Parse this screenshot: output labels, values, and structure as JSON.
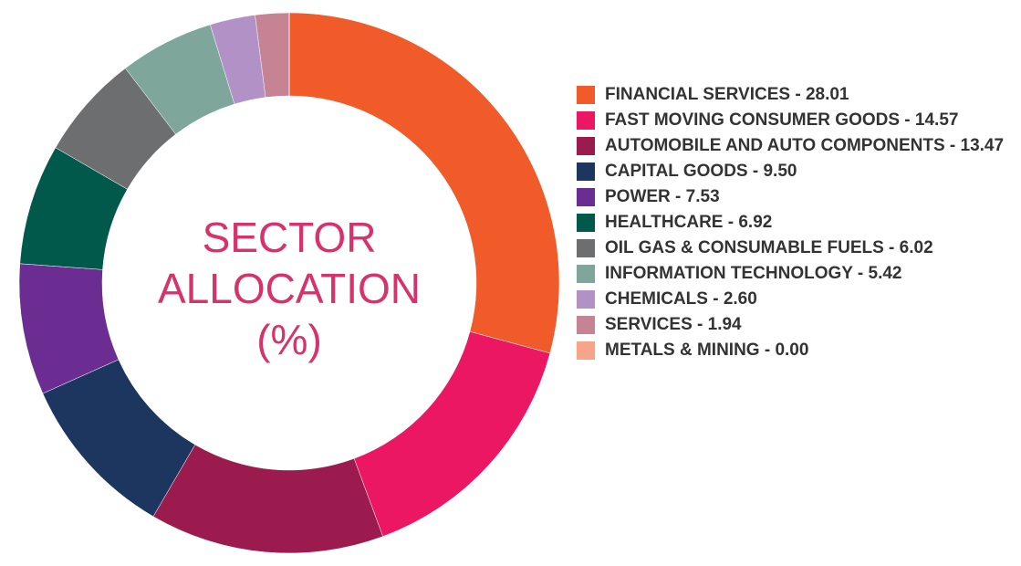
{
  "chart_data": {
    "type": "donut",
    "center_text": "SECTOR ALLOCATION (%)",
    "categories": [
      "FINANCIAL SERVICES - 28.01",
      "FAST MOVING CONSUMER GOODS - 14.57",
      "AUTOMOBILE AND AUTO COMPONENTS - 13.47",
      "CAPITAL GOODS - 9.50",
      "POWER - 7.53",
      "HEALTHCARE - 6.92",
      "OIL GAS & CONSUMABLE FUELS - 6.02",
      "INFORMATION TECHNOLOGY - 5.42",
      "CHEMICALS - 2.60",
      "SERVICES - 1.94",
      "METALS & MINING - 0.00"
    ],
    "values": [
      28.01,
      14.57,
      13.47,
      9.5,
      7.53,
      6.92,
      6.02,
      5.42,
      2.6,
      1.94,
      0
    ],
    "colors": [
      "#f15a29",
      "#ec1763",
      "#9b1b4e",
      "#1c3660",
      "#6b2d91",
      "#00594a",
      "#6d6e70",
      "#7fa69a",
      "#b191c6",
      "#c58393",
      "#f7a58a"
    ]
  }
}
